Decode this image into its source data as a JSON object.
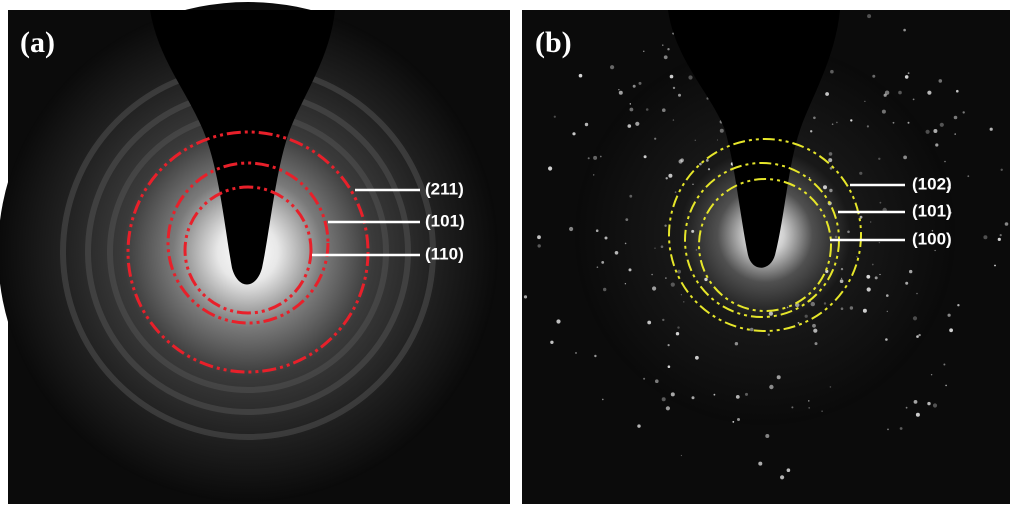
{
  "panels": [
    {
      "label": "(a)",
      "rings": [
        "(211)",
        "(101)",
        "(110)"
      ]
    },
    {
      "label": "(b)",
      "rings": [
        "(102)",
        "(101)",
        "(100)"
      ]
    }
  ]
}
